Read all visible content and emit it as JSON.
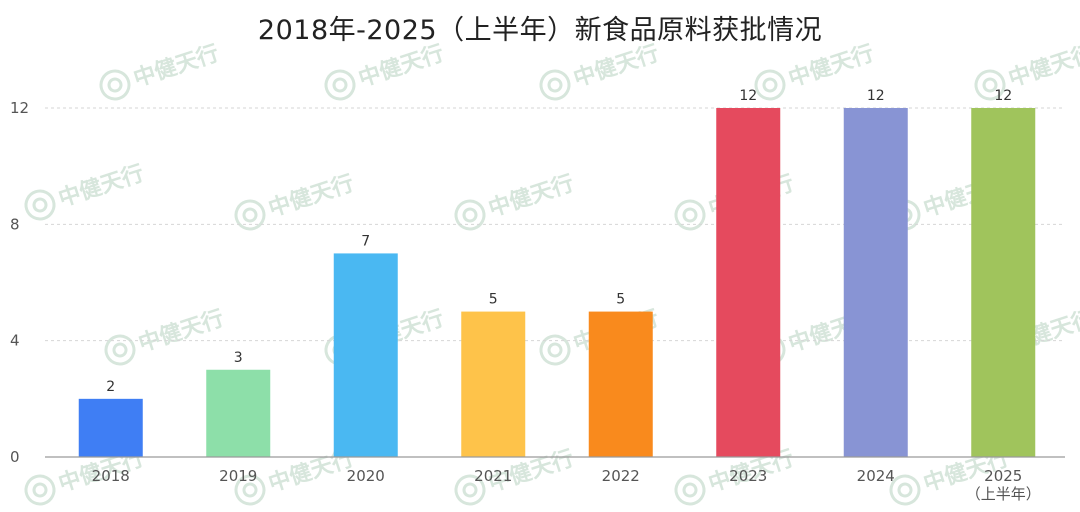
{
  "chart_data": {
    "type": "bar",
    "title": "2018年-2025（上半年）新食品原料获批情况",
    "categories": [
      "2018",
      "2019",
      "2020",
      "2021",
      "2022",
      "2023",
      "2024",
      "2025"
    ],
    "category_sublabels": [
      "",
      "",
      "",
      "",
      "",
      "",
      "",
      "（上半年）"
    ],
    "values": [
      2,
      3,
      7,
      5,
      5,
      12,
      12,
      12
    ],
    "bar_colors": [
      "#3f7ef4",
      "#8ddfa9",
      "#4ab8f2",
      "#fec34a",
      "#f98a1d",
      "#e54a5e",
      "#8894d4",
      "#a0c45c"
    ],
    "xlabel": "",
    "ylabel": "",
    "ylim": [
      0,
      12
    ],
    "yticks": [
      0,
      4,
      8,
      12
    ],
    "grid": true,
    "legend": "none"
  },
  "watermark": {
    "text": "中健天行"
  }
}
